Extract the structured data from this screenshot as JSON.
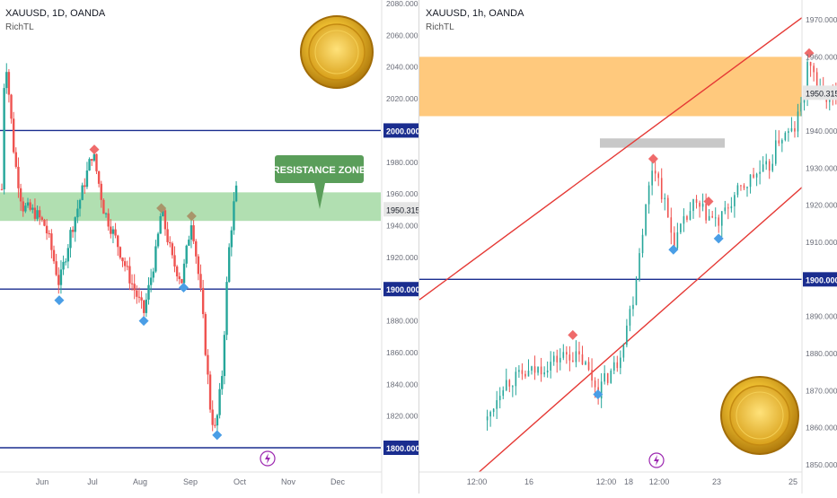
{
  "colors": {
    "candle_up": "#26a69a",
    "candle_down": "#ef5350",
    "level_line": "#1a2d8f",
    "resistance_zone": "#a8dca8",
    "supply_zone": "#ffc676",
    "gray_zone": "#c8c8c8",
    "channel": "#e53935",
    "marker_top": "#ef6b6b",
    "marker_bottom": "#4a9ee6",
    "marker_neutral": "#a8956a",
    "callout_bg": "#5a9e5a",
    "price_tag_bg": "#e6e6e6",
    "icon_purple": "#9c27b0"
  },
  "chart_data": [
    {
      "type": "candlestick",
      "header": "XAUUSD, 1D, OANDA",
      "indicator": "RichTL",
      "x_ticks": [
        "Jun",
        "Jul",
        "Aug",
        "Sep",
        "Oct",
        "Nov",
        "Dec"
      ],
      "y_ticks": [
        "2080.000",
        "2060.000",
        "2040.000",
        "2020.000",
        "2000.000",
        "1980.000",
        "1960.000",
        "1940.000",
        "1920.000",
        "1900.000",
        "1880.000",
        "1860.000",
        "1840.000",
        "1820.000",
        "1800.000"
      ],
      "ylim": [
        1792,
        2082
      ],
      "horizontal_levels": [
        2000,
        1900,
        1800
      ],
      "current_price_label": "1950.315",
      "resistance_zone": {
        "label": "RESISTANCE ZONE",
        "from": 1943,
        "to": 1961
      },
      "price_path": [
        {
          "date": "2023-05-24",
          "price": 1963
        },
        {
          "date": "2023-05-26",
          "price": 2052
        },
        {
          "date": "2023-06-01",
          "price": 1982
        },
        {
          "date": "2023-06-06",
          "price": 1952
        },
        {
          "date": "2023-06-14",
          "price": 1948
        },
        {
          "date": "2023-06-20",
          "price": 1940
        },
        {
          "date": "2023-06-23",
          "price": 1930
        },
        {
          "date": "2023-06-29",
          "price": 1903
        },
        {
          "date": "2023-07-06",
          "price": 1935
        },
        {
          "date": "2023-07-13",
          "price": 1960
        },
        {
          "date": "2023-07-20",
          "price": 1987
        },
        {
          "date": "2023-07-27",
          "price": 1950
        },
        {
          "date": "2023-08-04",
          "price": 1930
        },
        {
          "date": "2023-08-11",
          "price": 1910
        },
        {
          "date": "2023-08-21",
          "price": 1885
        },
        {
          "date": "2023-08-29",
          "price": 1925
        },
        {
          "date": "2023-09-01",
          "price": 1950
        },
        {
          "date": "2023-09-08",
          "price": 1918
        },
        {
          "date": "2023-09-14",
          "price": 1905
        },
        {
          "date": "2023-09-20",
          "price": 1945
        },
        {
          "date": "2023-09-26",
          "price": 1895
        },
        {
          "date": "2023-10-02",
          "price": 1822
        },
        {
          "date": "2023-10-05",
          "price": 1810
        },
        {
          "date": "2023-10-09",
          "price": 1845
        },
        {
          "date": "2023-10-13",
          "price": 1920
        },
        {
          "date": "2023-10-16",
          "price": 1950
        },
        {
          "date": "2023-10-18",
          "price": 1962
        }
      ],
      "markers": [
        {
          "date": "2023-06-29",
          "price": 1893,
          "kind": "bottom"
        },
        {
          "date": "2023-07-21",
          "price": 1988,
          "kind": "top"
        },
        {
          "date": "2023-08-21",
          "price": 1880,
          "kind": "bottom"
        },
        {
          "date": "2023-09-01",
          "price": 1951,
          "kind": "neutral"
        },
        {
          "date": "2023-09-15",
          "price": 1901,
          "kind": "bottom"
        },
        {
          "date": "2023-09-20",
          "price": 1946,
          "kind": "neutral"
        },
        {
          "date": "2023-10-06",
          "price": 1808,
          "kind": "bottom"
        }
      ]
    },
    {
      "type": "candlestick",
      "header": "XAUUSD, 1h, OANDA",
      "indicator": "RichTL",
      "x_ticks": [
        "12:00",
        "16",
        "12:00",
        "18",
        "12:00",
        "23",
        "25"
      ],
      "y_ticks": [
        "1970.000",
        "1960.000",
        "1950.000",
        "1940.000",
        "1930.000",
        "1920.000",
        "1910.000",
        "1900.000",
        "1890.000",
        "1880.000",
        "1870.000",
        "1860.000",
        "1850.000"
      ],
      "ylim": [
        1848,
        1972
      ],
      "horizontal_levels": [
        1900
      ],
      "current_price_label": "1950.315",
      "supply_zone": {
        "from": 1944,
        "to": 1960
      },
      "gray_zone": {
        "from": 1935.5,
        "to": 1938
      },
      "price_path": [
        {
          "t": "13 Oct 08:00",
          "price": 1862
        },
        {
          "t": "13 Oct 14:00",
          "price": 1872
        },
        {
          "t": "14 Oct 02:00",
          "price": 1875
        },
        {
          "t": "14 Oct 16:00",
          "price": 1880
        },
        {
          "t": "14 Oct 22:00",
          "price": 1878
        },
        {
          "t": "15 Oct 04:00",
          "price": 1870
        },
        {
          "t": "15 Oct 12:00",
          "price": 1878
        },
        {
          "t": "15 Oct 18:00",
          "price": 1895
        },
        {
          "t": "15 Oct 22:00",
          "price": 1915
        },
        {
          "t": "16 Oct 02:00",
          "price": 1932
        },
        {
          "t": "16 Oct 06:00",
          "price": 1922
        },
        {
          "t": "16 Oct 10:00",
          "price": 1910
        },
        {
          "t": "16 Oct 12:00",
          "price": 1912
        },
        {
          "t": "16 Oct 18:00",
          "price": 1920
        },
        {
          "t": "17 Oct 00:00",
          "price": 1917
        },
        {
          "t": "17 Oct 04:00",
          "price": 1915
        },
        {
          "t": "17 Oct 10:00",
          "price": 1922
        },
        {
          "t": "17 Oct 18:00",
          "price": 1928
        },
        {
          "t": "18 Oct 00:00",
          "price": 1930
        },
        {
          "t": "18 Oct 04:00",
          "price": 1938
        },
        {
          "t": "18 Oct 10:00",
          "price": 1940
        },
        {
          "t": "18 Oct 14:00",
          "price": 1950
        },
        {
          "t": "18 Oct 16:00",
          "price": 1960
        },
        {
          "t": "18 Oct 20:00",
          "price": 1950
        },
        {
          "t": "19 Oct 04:00",
          "price": 1948
        },
        {
          "t": "19 Oct 10:00",
          "price": 1947
        },
        {
          "t": "19 Oct 14:00",
          "price": 1950
        }
      ],
      "markers": [
        {
          "t": "14 Oct 18:00",
          "price": 1885,
          "kind": "top"
        },
        {
          "t": "15 Oct 04:00",
          "price": 1869,
          "kind": "bottom"
        },
        {
          "t": "16 Oct 02:00",
          "price": 1932.5,
          "kind": "top"
        },
        {
          "t": "16 Oct 10:00",
          "price": 1908,
          "kind": "bottom"
        },
        {
          "t": "17 Oct 00:00",
          "price": 1921,
          "kind": "top"
        },
        {
          "t": "17 Oct 04:00",
          "price": 1911,
          "kind": "bottom"
        },
        {
          "t": "18 Oct 16:00",
          "price": 1961,
          "kind": "top"
        },
        {
          "t": "19 Oct 10:00",
          "price": 1946,
          "kind": "neutral"
        }
      ],
      "channel_lines": [
        {
          "from": {
            "t": "12 Oct 12:00",
            "price": 1898
          },
          "to": {
            "t": "19 Oct 12:00",
            "price": 1982
          }
        },
        {
          "from": {
            "t": "13 Oct 08:00",
            "price": 1850
          },
          "to": {
            "t": "21 Oct 00:00",
            "price": 1960
          }
        }
      ]
    }
  ]
}
